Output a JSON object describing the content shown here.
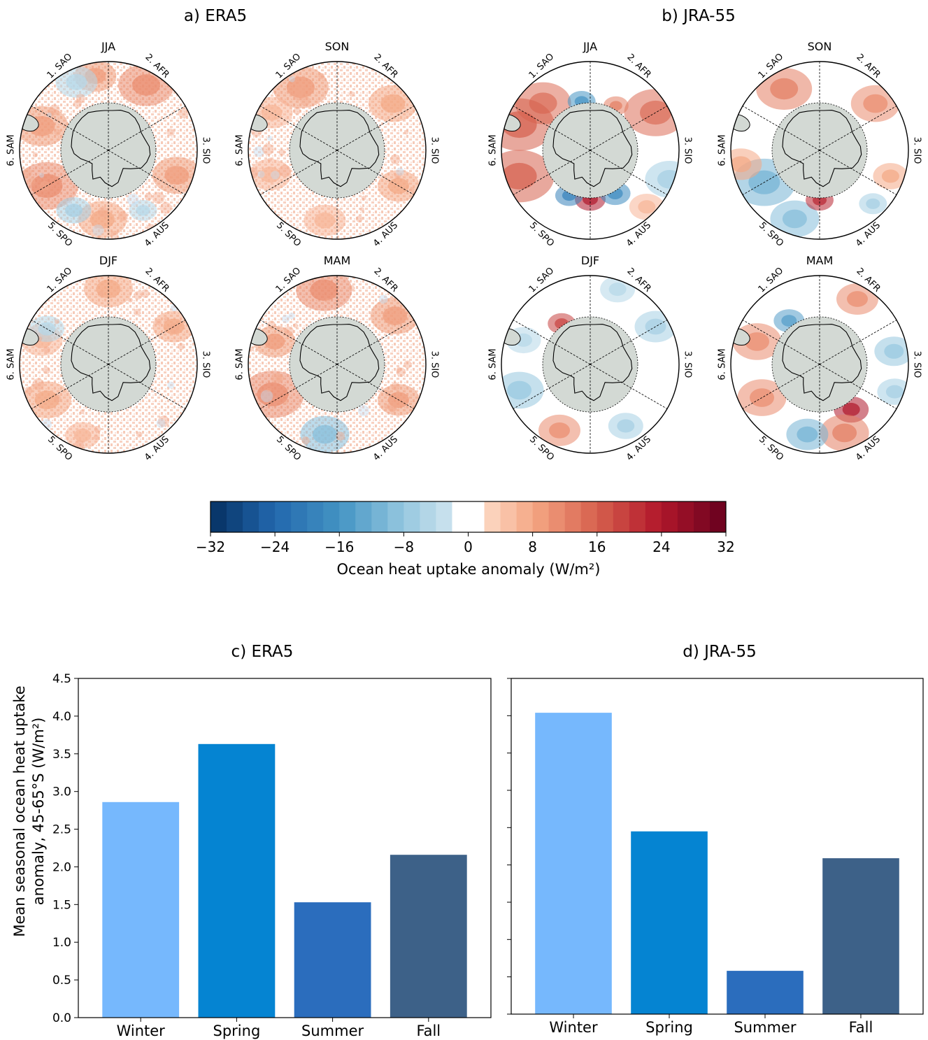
{
  "top_panels": [
    {
      "title": "a) ERA5",
      "seasons": [
        "JJA",
        "SON",
        "DJF",
        "MAM"
      ]
    },
    {
      "title": "b) JRA-55",
      "seasons": [
        "JJA",
        "SON",
        "DJF",
        "MAM"
      ]
    }
  ],
  "sector_labels": [
    "1. SAO",
    "2. AFR",
    "3. SIO",
    "4. AUS",
    "5. SPO",
    "6. SAM"
  ],
  "colorbar": {
    "label": "Ocean heat uptake anomaly (W/m²)",
    "ticks": [
      "−32",
      "−24",
      "−16",
      "−8",
      "0",
      "8",
      "16",
      "24",
      "32"
    ],
    "min": -32,
    "max": 32,
    "levels": 32,
    "colormap": "RdBu_r"
  },
  "colors": {
    "Winter": "#76b8fd",
    "Spring": "#0584d2",
    "Summer": "#2b6dbd",
    "Fall": "#3d6188",
    "land": "#d3d9d4"
  },
  "chart_data": [
    {
      "type": "bar",
      "title": "c) ERA5",
      "categories": [
        "Winter",
        "Spring",
        "Summer",
        "Fall"
      ],
      "values": [
        2.86,
        3.63,
        1.53,
        2.16
      ],
      "ylabel_line1": "Mean seasonal ocean heat uptake",
      "ylabel_line2": "anomaly, 45-65°S (W/m²)",
      "ylim": [
        0,
        4.5
      ],
      "yticks": [
        "0.0",
        "0.5",
        "1.0",
        "1.5",
        "2.0",
        "2.5",
        "3.0",
        "3.5",
        "4.0",
        "4.5"
      ]
    },
    {
      "type": "bar",
      "title": "d) JRA-55",
      "categories": [
        "Winter",
        "Spring",
        "Summer",
        "Fall"
      ],
      "values": [
        4.04,
        2.45,
        0.58,
        2.09
      ],
      "ylim": [
        0,
        4.5
      ]
    }
  ]
}
